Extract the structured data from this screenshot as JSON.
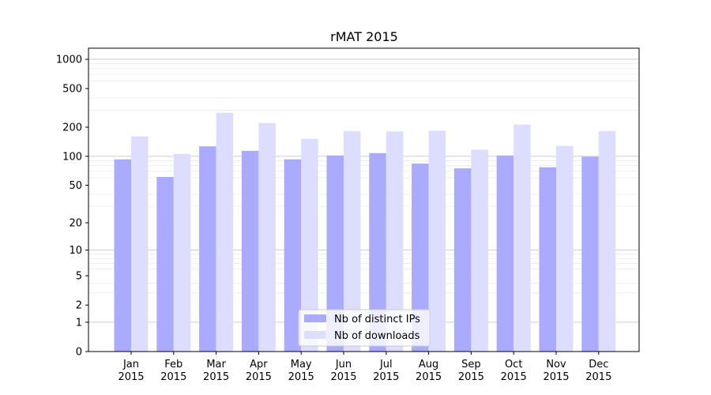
{
  "chart_data": {
    "type": "bar",
    "title": "rMAT 2015",
    "categories": [
      "Jan\n2015",
      "Feb\n2015",
      "Mar\n2015",
      "Apr\n2015",
      "May\n2015",
      "Jun\n2015",
      "Jul\n2015",
      "Aug\n2015",
      "Sep\n2015",
      "Oct\n2015",
      "Nov\n2015",
      "Dec\n2015"
    ],
    "series": [
      {
        "name": "Nb of distinct IPs",
        "values": [
          93,
          61,
          127,
          114,
          93,
          102,
          108,
          84,
          75,
          102,
          77,
          99
        ],
        "color": "#aaaaff"
      },
      {
        "name": "Nb of downloads",
        "values": [
          161,
          106,
          282,
          221,
          152,
          182,
          181,
          184,
          117,
          213,
          128,
          182
        ],
        "color": "#ddddff"
      }
    ],
    "yscale": "symlog",
    "yticks": [
      0,
      1,
      2,
      5,
      10,
      20,
      50,
      100,
      200,
      500,
      1000
    ],
    "ylim": [
      0,
      1300
    ],
    "legend": "lower-center",
    "grid": "y"
  }
}
